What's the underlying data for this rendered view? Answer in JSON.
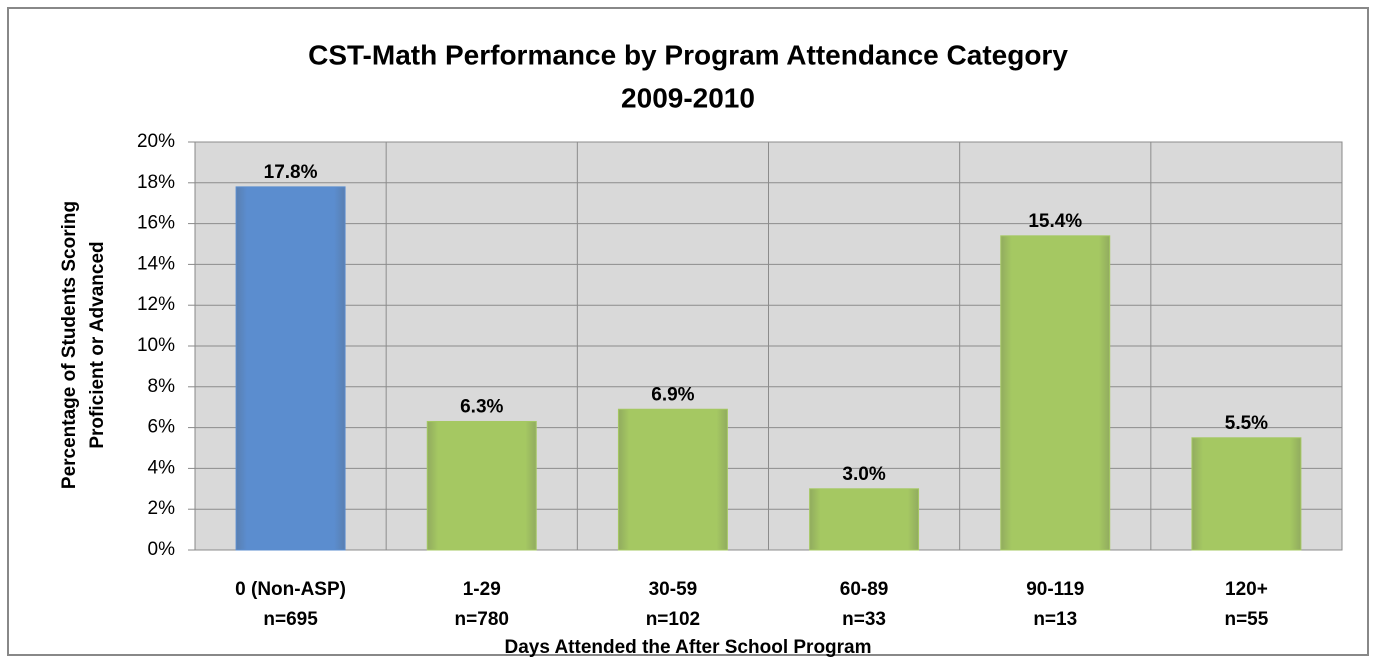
{
  "chart_data": {
    "type": "bar",
    "title": [
      "CST-Math Performance by Program Attendance Category",
      "2009-2010"
    ],
    "categories": [
      [
        "0 (Non-ASP)",
        "n=695"
      ],
      [
        "1-29",
        "n=780"
      ],
      [
        "30-59",
        "n=102"
      ],
      [
        "60-89",
        "n=33"
      ],
      [
        "90-119",
        "n=13"
      ],
      [
        "120+",
        "n=55"
      ]
    ],
    "values": [
      17.8,
      6.3,
      6.9,
      3.0,
      15.4,
      5.5
    ],
    "value_labels": [
      "17.8%",
      "6.3%",
      "6.9%",
      "3.0%",
      "15.4%",
      "5.5%"
    ],
    "colors": [
      "#5b8dcf",
      "#a5c862",
      "#a5c862",
      "#a5c862",
      "#a5c862",
      "#a5c862"
    ],
    "x_label": "Days Attended the After School Program",
    "y_label": [
      "Percentage of Students Scoring",
      "Proficient or Advanced"
    ],
    "ylim": [
      0,
      20
    ],
    "yticks": [
      {
        "value": 0,
        "label": "0%"
      },
      {
        "value": 2,
        "label": "2%"
      },
      {
        "value": 4,
        "label": "4%"
      },
      {
        "value": 6,
        "label": "6%"
      },
      {
        "value": 8,
        "label": "8%"
      },
      {
        "value": 10,
        "label": "10%"
      },
      {
        "value": 12,
        "label": "12%"
      },
      {
        "value": 14,
        "label": "14%"
      },
      {
        "value": 16,
        "label": "16%"
      },
      {
        "value": 18,
        "label": "18%"
      },
      {
        "value": 20,
        "label": "20%"
      }
    ],
    "grid": true
  }
}
